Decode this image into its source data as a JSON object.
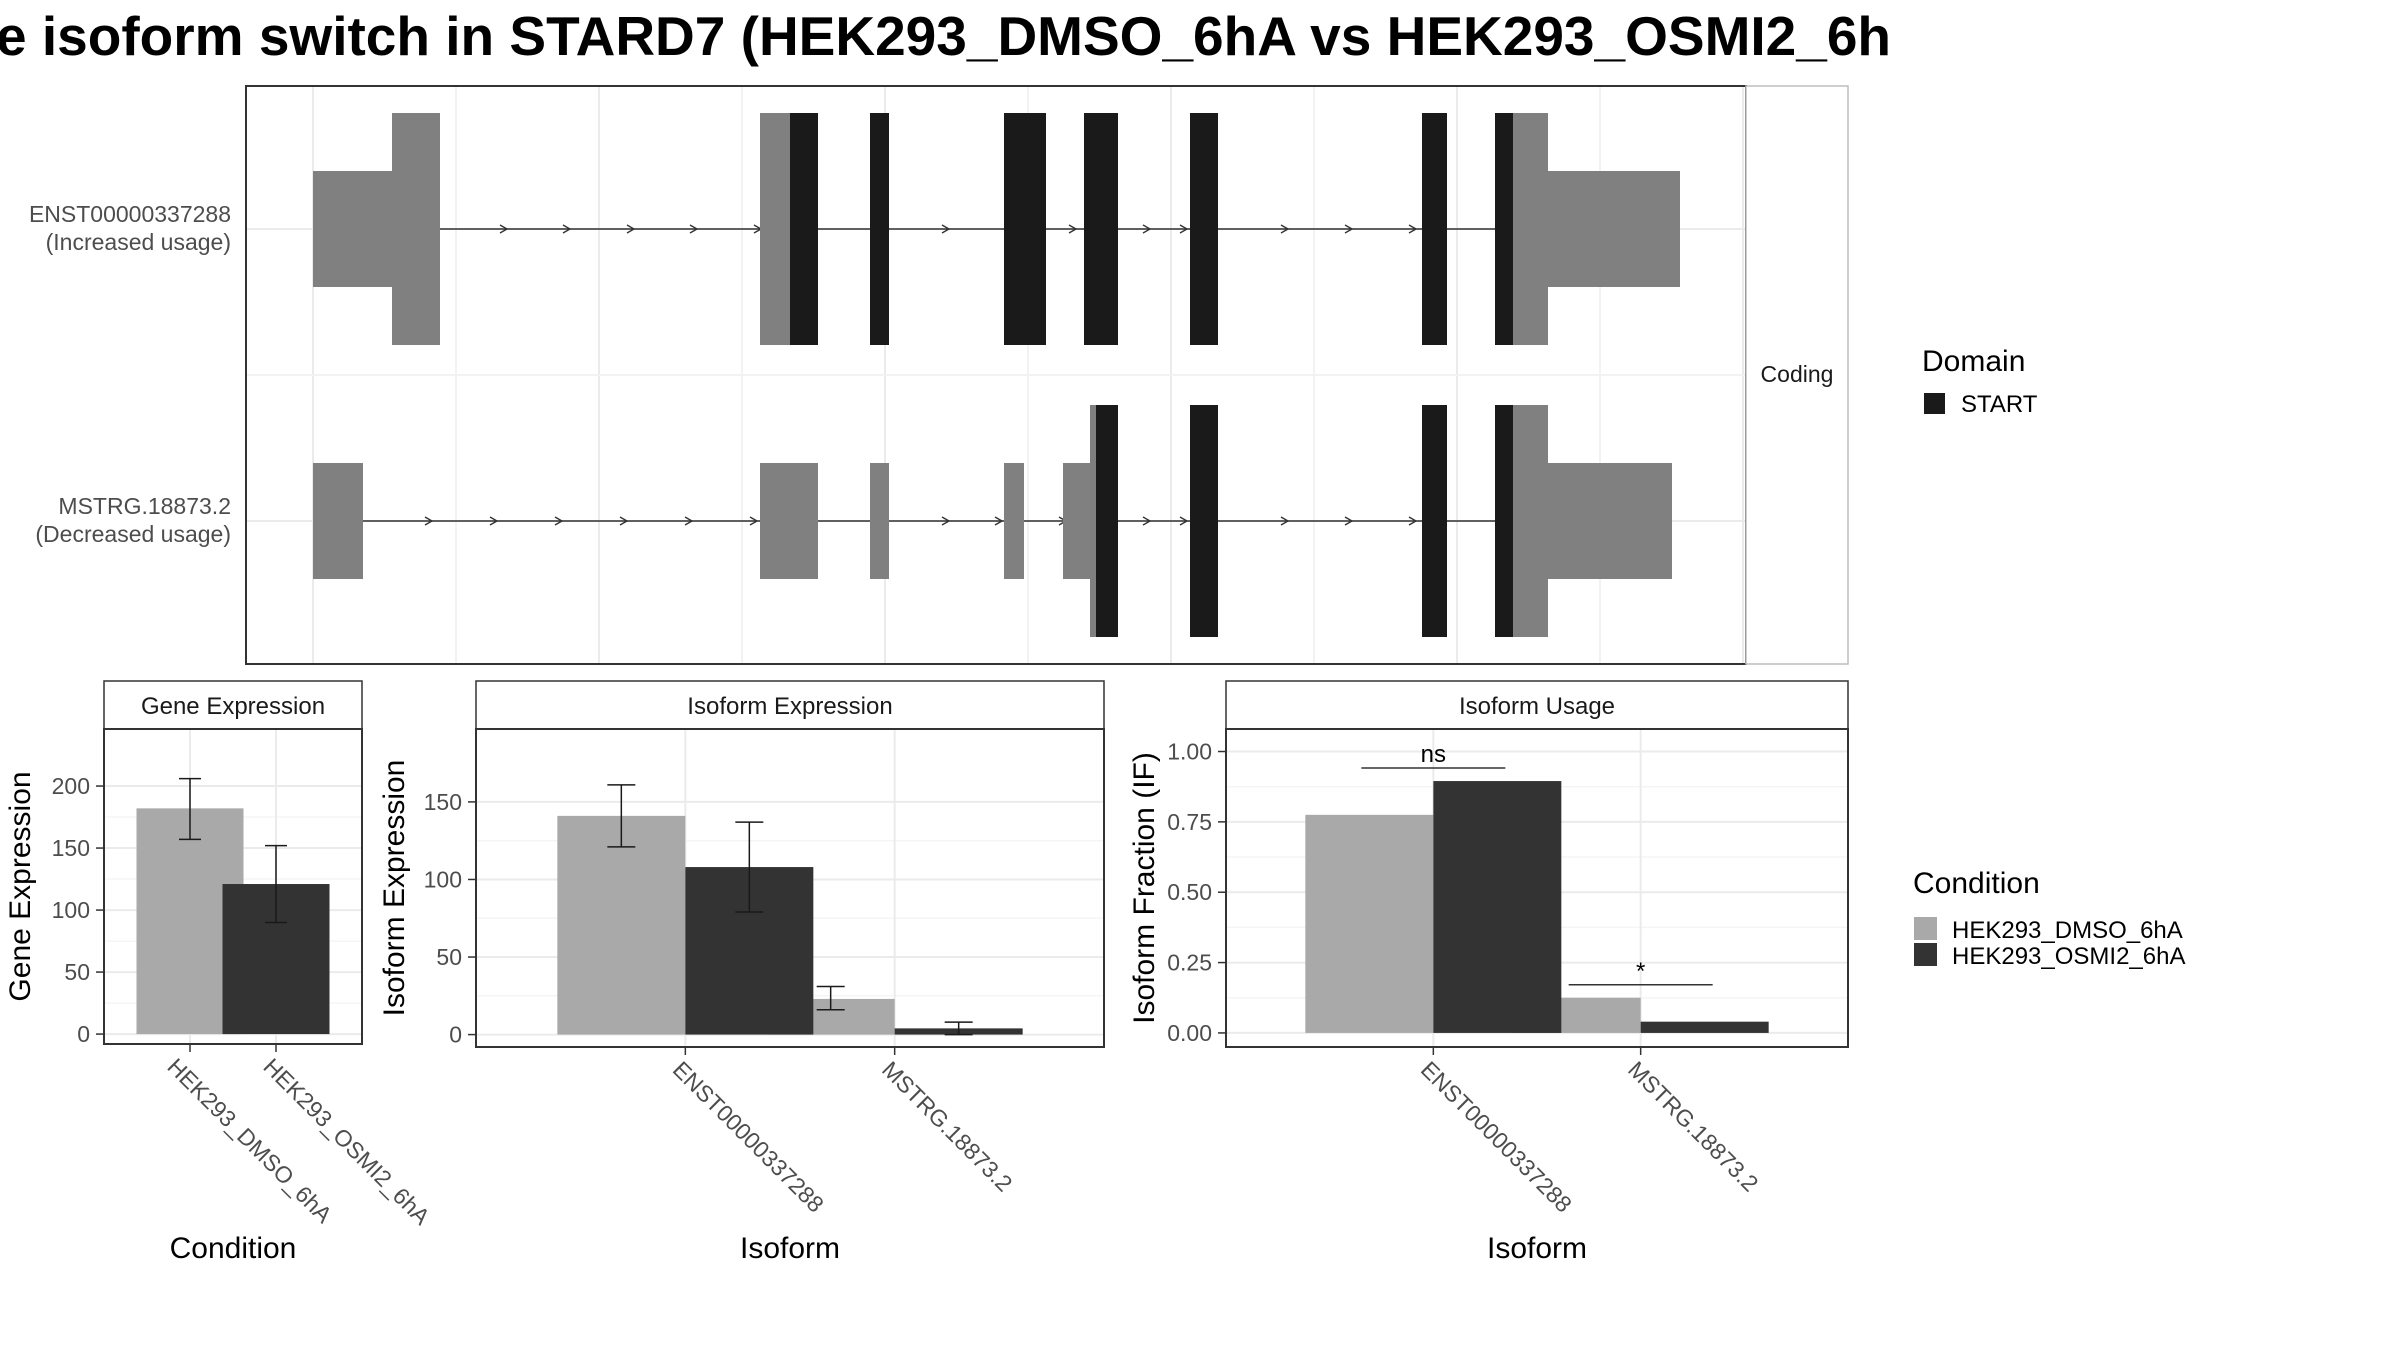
{
  "title": "e isoform switch in STARD7 (HEK293_DMSO_6hA vs HEK293_OSMI2_6h",
  "colors": {
    "utr": "#808080",
    "coding": "#1a1a1a",
    "dmso": "#a9a9a9",
    "osmi": "#333333",
    "grid": "#ebebeb",
    "strip": "#ffffff"
  },
  "structure": {
    "strip_label": "Coding",
    "legend_title": "Domain",
    "legend_items": [
      {
        "label": "START",
        "color": "#1a1a1a"
      }
    ],
    "transcripts": [
      {
        "id": "ENST00000337288",
        "usage": "(Increased usage)"
      },
      {
        "id": "MSTRG.18873.2",
        "usage": "(Decreased usage)"
      }
    ]
  },
  "chart_data": [
    {
      "type": "bar",
      "title": "Gene Expression",
      "xlabel": "Condition",
      "ylabel": "Gene Expression",
      "categories": [
        "HEK293_DMSO_6hA",
        "HEK293_OSMI2_6hA"
      ],
      "values": [
        182,
        121
      ],
      "errors": [
        [
          157,
          206
        ],
        [
          90,
          152
        ]
      ],
      "ylim": [
        -8,
        246
      ],
      "yticks": [
        0,
        50,
        100,
        150,
        200
      ],
      "ytick_labels": [
        "0",
        "50",
        "100",
        "150",
        "200"
      ]
    },
    {
      "type": "bar",
      "title": "Isoform Expression",
      "xlabel": "Isoform",
      "ylabel": "Isoform Expression",
      "categories": [
        "ENST00000337288",
        "MSTRG.18873.2"
      ],
      "series": [
        {
          "name": "HEK293_DMSO_6hA",
          "values": [
            141,
            23
          ],
          "errors": [
            [
              121,
              161
            ],
            [
              16,
              31
            ]
          ]
        },
        {
          "name": "HEK293_OSMI2_6hA",
          "values": [
            108,
            4
          ],
          "errors": [
            [
              79,
              137
            ],
            [
              0,
              8
            ]
          ]
        }
      ],
      "ylim": [
        -8,
        197
      ],
      "yticks": [
        0,
        50,
        100,
        150
      ],
      "ytick_labels": [
        "0",
        "50",
        "100",
        "150"
      ]
    },
    {
      "type": "bar",
      "title": "Isoform Usage",
      "xlabel": "Isoform",
      "ylabel": "Isoform Fraction (IF)",
      "categories": [
        "ENST00000337288",
        "MSTRG.18873.2"
      ],
      "series": [
        {
          "name": "HEK293_DMSO_6hA",
          "values": [
            0.775,
            0.125
          ]
        },
        {
          "name": "HEK293_OSMI2_6hA",
          "values": [
            0.895,
            0.04
          ]
        }
      ],
      "significance": [
        "ns",
        "*"
      ],
      "ylim": [
        -0.05,
        1.08
      ],
      "yticks": [
        0,
        0.25,
        0.5,
        0.75,
        1.0
      ],
      "ytick_labels": [
        "0.00",
        "0.25",
        "0.50",
        "0.75",
        "1.00"
      ]
    }
  ],
  "condition_legend": {
    "title": "Condition",
    "items": [
      {
        "label": "HEK293_DMSO_6hA",
        "color": "#a9a9a9"
      },
      {
        "label": "HEK293_OSMI2_6hA",
        "color": "#333333"
      }
    ]
  }
}
